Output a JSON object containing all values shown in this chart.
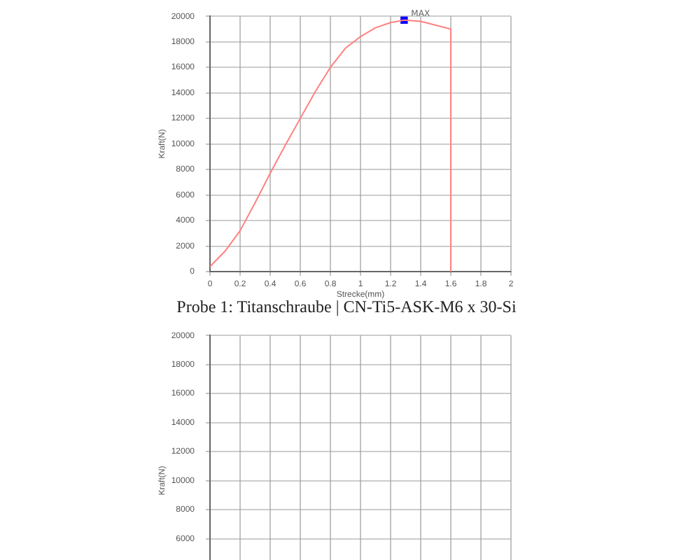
{
  "chart_data": [
    {
      "type": "line",
      "xlabel": "Strecke(mm)",
      "ylabel": "Kraft(N)",
      "xlim": [
        0,
        2
      ],
      "xticks": [
        0,
        0.2,
        0.4,
        0.6,
        0.8,
        1,
        1.2,
        1.4,
        1.6,
        1.8,
        2
      ],
      "ylim": [
        0,
        20000
      ],
      "yticks": [
        0,
        2000,
        4000,
        6000,
        8000,
        10000,
        12000,
        14000,
        16000,
        18000,
        20000
      ],
      "grid": true,
      "legend": false,
      "marker": "none",
      "line_style": "solid",
      "series": [
        {
          "color": "#ff8080",
          "x": [
            0,
            0.1,
            0.2,
            0.3,
            0.4,
            0.5,
            0.6,
            0.7,
            0.8,
            0.9,
            1,
            1.1,
            1.2,
            1.29,
            1.4,
            1.5,
            1.6,
            1.6
          ],
          "values": [
            400,
            1600,
            3200,
            5400,
            7700,
            9900,
            12000,
            14100,
            16000,
            17500,
            18400,
            19100,
            19500,
            19700,
            19600,
            19300,
            19000,
            0
          ]
        },
        {
          "type": "scatter",
          "marker": "square",
          "color": "#0000ff",
          "x": [
            1.29
          ],
          "values": [
            19700
          ]
        }
      ],
      "annotations": [
        {
          "text": "MAX",
          "x": 1.29,
          "y": 19700
        },
        "Probe 1: Titanschraube | CN-Ti5-ASK-M6 x 30-Si"
      ]
    },
    {
      "type": "line",
      "ylabel": "Kraft(N)",
      "xlim": [
        0,
        2
      ],
      "xticks": [
        0,
        0.2,
        0.4,
        0.6,
        0.8,
        1,
        1.2,
        1.4,
        1.6,
        1.8,
        2
      ],
      "ylim": [
        0,
        20000
      ],
      "yticks": [
        6000,
        8000,
        10000,
        12000,
        14000,
        16000,
        18000,
        20000
      ],
      "grid": true,
      "legend": false,
      "tick_labels": "y"
    }
  ]
}
